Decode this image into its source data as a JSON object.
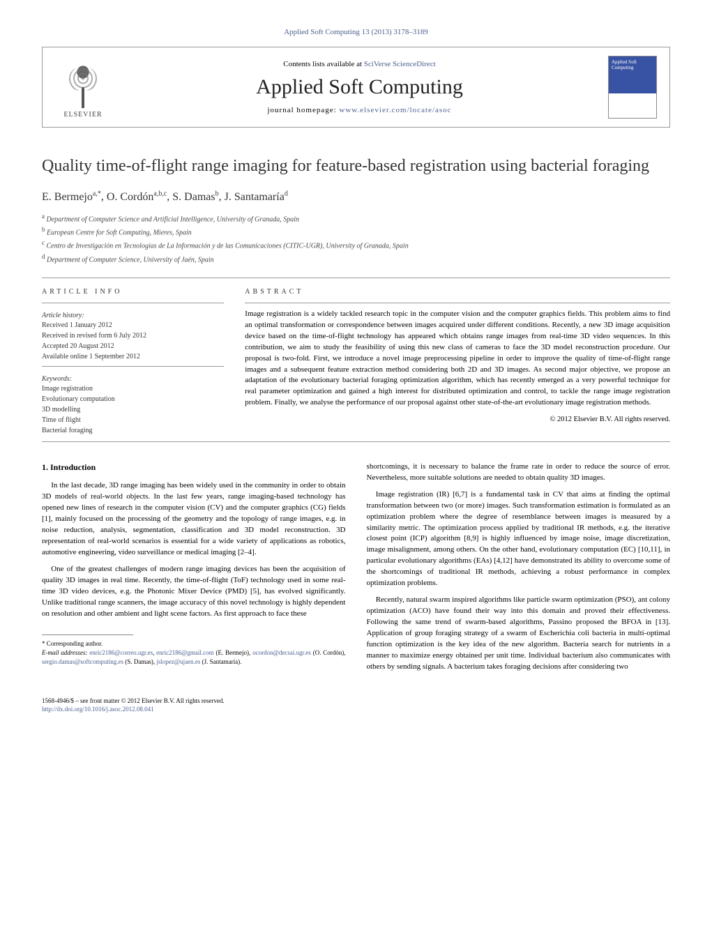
{
  "header": {
    "citation": "Applied Soft Computing 13 (2013) 3178–3189",
    "contents_prefix": "Contents lists available at ",
    "contents_link": "SciVerse ScienceDirect",
    "journal_title": "Applied Soft Computing",
    "homepage_prefix": "journal homepage: ",
    "homepage_url": "www.elsevier.com/locate/asoc",
    "publisher_name": "ELSEVIER",
    "cover_text": "Applied Soft Computing"
  },
  "article": {
    "title": "Quality time-of-flight range imaging for feature-based registration using bacterial foraging",
    "authors_html": "E. Bermejo",
    "authors": [
      {
        "name": "E. Bermejo",
        "sup": "a,*"
      },
      {
        "name": "O. Cordón",
        "sup": "a,b,c"
      },
      {
        "name": "S. Damas",
        "sup": "b"
      },
      {
        "name": "J. Santamaría",
        "sup": "d"
      }
    ],
    "affiliations": [
      {
        "sup": "a",
        "text": "Department of Computer Science and Artificial Intelligence, University of Granada, Spain"
      },
      {
        "sup": "b",
        "text": "European Centre for Soft Computing, Mieres, Spain"
      },
      {
        "sup": "c",
        "text": "Centro de Investigación en Tecnologías de La Información y de las Comunicaciones (CITIC-UGR), University of Granada, Spain"
      },
      {
        "sup": "d",
        "text": "Department of Computer Science, University of Jaén, Spain"
      }
    ]
  },
  "info": {
    "heading": "ARTICLE INFO",
    "history_label": "Article history:",
    "history": [
      "Received 1 January 2012",
      "Received in revised form 6 July 2012",
      "Accepted 20 August 2012",
      "Available online 1 September 2012"
    ],
    "keywords_label": "Keywords:",
    "keywords": [
      "Image registration",
      "Evolutionary computation",
      "3D modelling",
      "Time of flight",
      "Bacterial foraging"
    ]
  },
  "abstract": {
    "heading": "ABSTRACT",
    "text": "Image registration is a widely tackled research topic in the computer vision and the computer graphics fields. This problem aims to find an optimal transformation or correspondence between images acquired under different conditions. Recently, a new 3D image acquisition device based on the time-of-flight technology has appeared which obtains range images from real-time 3D video sequences. In this contribution, we aim to study the feasibility of using this new class of cameras to face the 3D model reconstruction procedure. Our proposal is two-fold. First, we introduce a novel image preprocessing pipeline in order to improve the quality of time-of-flight range images and a subsequent feature extraction method considering both 2D and 3D images. As second major objective, we propose an adaptation of the evolutionary bacterial foraging optimization algorithm, which has recently emerged as a very powerful technique for real parameter optimization and gained a high interest for distributed optimization and control, to tackle the range image registration problem. Finally, we analyse the performance of our proposal against other state-of-the-art evolutionary image registration methods.",
    "copyright": "© 2012 Elsevier B.V. All rights reserved."
  },
  "body": {
    "section_num": "1.",
    "section_title": "Introduction",
    "col1": [
      "In the last decade, 3D range imaging has been widely used in the community in order to obtain 3D models of real-world objects. In the last few years, range imaging-based technology has opened new lines of research in the computer vision (CV) and the computer graphics (CG) fields [1], mainly focused on the processing of the geometry and the topology of range images, e.g. in noise reduction, analysis, segmentation, classification and 3D model reconstruction. 3D representation of real-world scenarios is essential for a wide variety of applications as robotics, automotive engineering, video surveillance or medical imaging [2–4].",
      "One of the greatest challenges of modern range imaging devices has been the acquisition of quality 3D images in real time. Recently, the time-of-flight (ToF) technology used in some real-time 3D video devices, e.g. the Photonic Mixer Device (PMD) [5], has evolved significantly. Unlike traditional range scanners, the image accuracy of this novel technology is highly dependent on resolution and other ambient and light scene factors. As first approach to face these"
    ],
    "col2": [
      "shortcomings, it is necessary to balance the frame rate in order to reduce the source of error. Nevertheless, more suitable solutions are needed to obtain quality 3D images.",
      "Image registration (IR) [6,7] is a fundamental task in CV that aims at finding the optimal transformation between two (or more) images. Such transformation estimation is formulated as an optimization problem where the degree of resemblance between images is measured by a similarity metric. The optimization process applied by traditional IR methods, e.g. the iterative closest point (ICP) algorithm [8,9] is highly influenced by image noise, image discretization, image misalignment, among others. On the other hand, evolutionary computation (EC) [10,11], in particular evolutionary algorithms (EAs) [4,12] have demonstrated its ability to overcome some of the shortcomings of traditional IR methods, achieving a robust performance in complex optimization problems.",
      "Recently, natural swarm inspired algorithms like particle swarm optimization (PSO), ant colony optimization (ACO) have found their way into this domain and proved their effectiveness. Following the same trend of swarm-based algorithms, Passino proposed the BFOA in [13]. Application of group foraging strategy of a swarm of Escherichia coli bacteria in multi-optimal function optimization is the key idea of the new algorithm. Bacteria search for nutrients in a manner to maximize energy obtained per unit time. Individual bacterium also communicates with others by sending signals. A bacterium takes foraging decisions after considering two"
    ]
  },
  "footnotes": {
    "corresponding": "* Corresponding author.",
    "email_label": "E-mail addresses:",
    "emails": [
      {
        "addr": "enric2186@correo.ugr.es",
        "tail": ", "
      },
      {
        "addr": "enric2186@gmail.com",
        "tail": " (E. Bermejo), "
      },
      {
        "addr": "ocordon@decsai.ugr.es",
        "tail": " (O. Cordón), "
      },
      {
        "addr": "sergio.damas@softcomputing.es",
        "tail": " (S. Damas), "
      },
      {
        "addr": "jslopez@ujaen.es",
        "tail": " (J. Santamaría)."
      }
    ]
  },
  "bottom": {
    "issn_line": "1568-4946/$ – see front matter © 2012 Elsevier B.V. All rights reserved.",
    "doi_url": "http://dx.doi.org/10.1016/j.asoc.2012.08.041"
  },
  "colors": {
    "link": "#4a5f8f",
    "text": "#000000",
    "rule": "#999999",
    "cover_bg": "#3853a4"
  },
  "refs": {
    "r1": "[1]",
    "r24": "[2–4]",
    "r5": "[5]",
    "r67": "[6,7]",
    "r89": "[8,9]",
    "r1011": "[10,11]",
    "r412": "[4,12]",
    "r13": "[13]"
  }
}
